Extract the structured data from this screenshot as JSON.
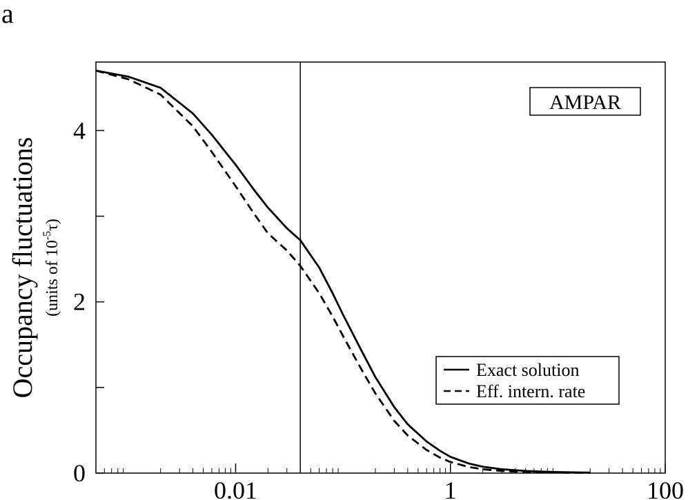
{
  "panel_label": "a",
  "chart_data": {
    "type": "line",
    "x_scale": "log",
    "xlim": [
      0.0005,
      100
    ],
    "ylim": [
      0,
      4.8
    ],
    "x_ticks": [
      {
        "value": 0.01,
        "label": "0.01"
      },
      {
        "value": 1,
        "label": "1"
      },
      {
        "value": 100,
        "label": "100"
      }
    ],
    "y_ticks": [
      {
        "value": 0,
        "label": "0"
      },
      {
        "value": 1,
        "label": ""
      },
      {
        "value": 2,
        "label": "2"
      },
      {
        "value": 3,
        "label": ""
      },
      {
        "value": 4,
        "label": "4"
      }
    ],
    "ylabel": "Occupancy fluctuations",
    "ylabel_sub": "(units of 10",
    "ylabel_sub_exp": "-5",
    "ylabel_sub_end": "τ)",
    "annotation": "AMPAR",
    "vline_x": 0.04,
    "legend_position": "lower-right",
    "series": [
      {
        "name": "Exact solution",
        "style": "solid",
        "x": [
          0.0005,
          0.001,
          0.002,
          0.004,
          0.006,
          0.01,
          0.015,
          0.02,
          0.03,
          0.04,
          0.06,
          0.08,
          0.1,
          0.15,
          0.2,
          0.3,
          0.4,
          0.6,
          0.8,
          1,
          1.5,
          2,
          3,
          5,
          7,
          10,
          15,
          20
        ],
        "values": [
          4.7,
          4.63,
          4.5,
          4.2,
          3.95,
          3.6,
          3.3,
          3.1,
          2.86,
          2.72,
          2.4,
          2.1,
          1.85,
          1.42,
          1.12,
          0.77,
          0.57,
          0.37,
          0.26,
          0.19,
          0.11,
          0.075,
          0.045,
          0.025,
          0.018,
          0.012,
          0.008,
          0.006
        ]
      },
      {
        "name": "Eff. intern. rate",
        "style": "dashed",
        "x": [
          0.0005,
          0.001,
          0.002,
          0.004,
          0.006,
          0.01,
          0.015,
          0.02,
          0.03,
          0.04,
          0.06,
          0.08,
          0.1,
          0.15,
          0.2,
          0.3,
          0.4,
          0.6,
          0.8,
          1,
          1.5,
          2,
          3,
          5,
          7,
          10,
          15,
          20
        ],
        "values": [
          4.7,
          4.6,
          4.42,
          4.05,
          3.75,
          3.35,
          3.02,
          2.8,
          2.6,
          2.42,
          2.1,
          1.83,
          1.6,
          1.2,
          0.93,
          0.61,
          0.44,
          0.27,
          0.18,
          0.13,
          0.07,
          0.045,
          0.025,
          0.013,
          0.009,
          0.006,
          0.004,
          0.003
        ]
      }
    ]
  }
}
